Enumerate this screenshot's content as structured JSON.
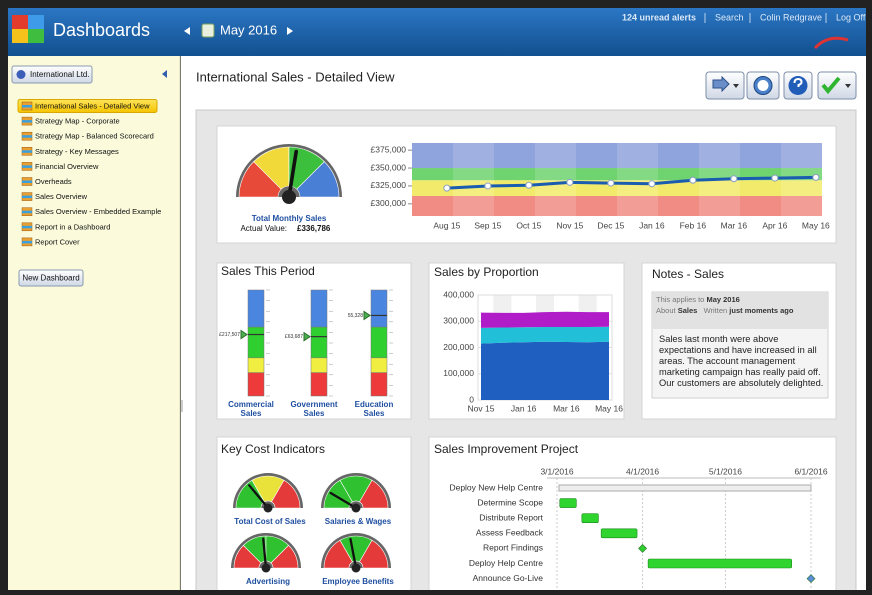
{
  "header": {
    "title": "Dashboards",
    "period": "May 2016",
    "alerts": "124 unread alerts",
    "links": [
      "Search",
      "Colin Redgrave",
      "Log Off"
    ]
  },
  "sidebar": {
    "org": "International Ltd.",
    "items": [
      "International Sales - Detailed View",
      "Strategy Map - Corporate",
      "Strategy Map - Balanced Scorecard",
      "Strategy - Key Messages",
      "Financial Overview",
      "Overheads",
      "Sales Overview",
      "Sales Overview - Embedded Example",
      "Report in a Dashboard",
      "Report Cover"
    ],
    "button": "New Dashboard"
  },
  "page_title": "International Sales - Detailed View",
  "monthly_sales": {
    "gauge": {
      "label": "Total Monthly Sales",
      "actual_label": "Actual Value:",
      "actual_value": "£336,786",
      "value": 55,
      "range": [
        0,
        100
      ]
    },
    "trend": {
      "type": "line",
      "color": "#1a5cb0",
      "categories": [
        "Aug 15",
        "Sep 15",
        "Oct 15",
        "Nov 15",
        "Dec 15",
        "Jan 16",
        "Feb 16",
        "Mar 16",
        "Apr 16",
        "May 16"
      ],
      "values": [
        322000,
        325000,
        326000,
        330000,
        329000,
        328000,
        333000,
        335000,
        336000,
        337000
      ],
      "ylim": [
        283000,
        385000
      ],
      "yticks": [
        {
          "value": 300000,
          "label": "£300,000"
        },
        {
          "value": 325000,
          "label": "£325,000"
        },
        {
          "value": 350000,
          "label": "£350,000"
        },
        {
          "value": 375000,
          "label": "£375,000"
        }
      ],
      "bands": [
        {
          "from": 283000,
          "to": 311000,
          "color": "#f08c84"
        },
        {
          "from": 311000,
          "to": 333000,
          "color": "#f2ea6a"
        },
        {
          "from": 333000,
          "to": 350000,
          "color": "#6fd36f"
        },
        {
          "from": 350000,
          "to": 385000,
          "color": "#8fa3dc"
        }
      ]
    }
  },
  "sales_this_period": {
    "title": "Sales This Period",
    "meters": [
      {
        "label": [
          "Commercial",
          "Sales"
        ],
        "value_label": "£217,507",
        "level": 0.58
      },
      {
        "label": [
          "Government",
          "Sales"
        ],
        "value_label": "£63,687",
        "level": 0.56
      },
      {
        "label": [
          "Education",
          "Sales"
        ],
        "value_label": "55,328",
        "level": 0.76
      }
    ]
  },
  "sales_by_proportion": {
    "type": "area",
    "title": "Sales by Proportion",
    "categories": [
      "Nov 15",
      null,
      "Jan 16",
      null,
      "Mar 16",
      null,
      "May 16"
    ],
    "series": [
      {
        "color": "#1f5fc0",
        "values": [
          215000,
          218000,
          220000,
          222000,
          221000,
          220000,
          222000
        ]
      },
      {
        "color": "#22c0d8",
        "values": [
          60000,
          58000,
          57000,
          56000,
          57000,
          58000,
          57000
        ]
      },
      {
        "color": "#b01cc8",
        "values": [
          58000,
          56000,
          55000,
          57000,
          58000,
          57000,
          56000
        ]
      }
    ],
    "ylim": [
      0,
      400000
    ],
    "yticks": [
      0,
      {
        "value": 100000,
        "label": "100,000"
      },
      {
        "value": 200000,
        "label": "200,000"
      },
      {
        "value": 300000,
        "label": "300,000"
      },
      {
        "value": 400000,
        "label": "400,000"
      }
    ],
    "grid": true
  },
  "notes": {
    "title": "Notes - Sales",
    "applies_label": "This applies to",
    "applies_value": "May 2016",
    "about_label": "About",
    "about_value": "Sales",
    "written_label": "Written",
    "written_value": "just moments ago",
    "text": "Sales last month were above expectations and have increased in all areas. The account management marketing campaign has really paid off. Our customers are absolutely delighted."
  },
  "key_cost_indicators": {
    "title": "Key Cost Indicators",
    "range": [
      0,
      100
    ],
    "gauges": [
      {
        "label": "Total Cost of Sales",
        "value": 28,
        "colors": [
          "#2fc12f",
          "#e8e23a",
          "#e53a3a"
        ]
      },
      {
        "label": "Salaries & Wages",
        "value": 17,
        "colors": [
          "#2fc12f",
          "#2fc12f",
          "#e53a3a"
        ]
      },
      {
        "label": "Advertising",
        "value": 47,
        "colors": [
          "#e53a3a",
          "#2fc12f",
          "#2fc12f",
          "#e53a3a"
        ]
      },
      {
        "label": "Employee Benefits",
        "value": 44,
        "colors": [
          "#e53a3a",
          "#2fc12f",
          "#e53a3a"
        ]
      }
    ]
  },
  "sales_improvement": {
    "title": "Sales Improvement Project",
    "xlim": [
      "2016-03-01",
      "2016-06-01"
    ],
    "xticks": [
      {
        "value": "2016-03-01",
        "label": "3/1/2016"
      },
      {
        "value": "2016-04-01",
        "label": "4/1/2016"
      },
      {
        "value": "2016-05-01",
        "label": "5/1/2016"
      },
      {
        "value": "2016-06-01",
        "label": "6/1/2016"
      }
    ],
    "tasks": [
      {
        "name": "Deploy New Help Centre",
        "start": "2016-03-01",
        "end": "2016-06-01",
        "kind": "summary"
      },
      {
        "name": "Determine Scope",
        "start": "2016-03-02",
        "end": "2016-03-08"
      },
      {
        "name": "Distribute Report",
        "start": "2016-03-10",
        "end": "2016-03-16"
      },
      {
        "name": "Assess Feedback",
        "start": "2016-03-17",
        "end": "2016-03-30"
      },
      {
        "name": "Report Findings",
        "start": "2016-04-01",
        "end": "2016-04-01"
      },
      {
        "name": "Deploy Help Centre",
        "start": "2016-04-03",
        "end": "2016-05-25"
      },
      {
        "name": "Announce Go-Live",
        "start": "2016-06-01",
        "end": "2016-06-01"
      }
    ]
  }
}
